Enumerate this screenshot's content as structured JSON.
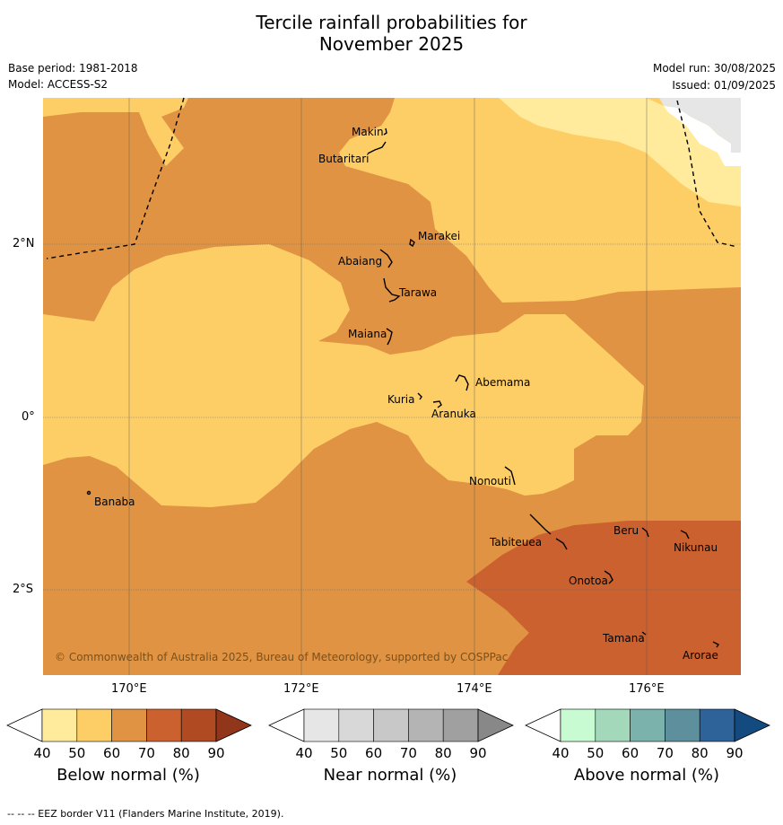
{
  "title_line1": "Tercile rainfall probabilities for",
  "title_line2": "November 2025",
  "base_period": "Base period: 1981-2018",
  "model": "Model: ACCESS-S2",
  "model_run": "Model run: 30/08/2025",
  "issued": "Issued: 01/09/2025",
  "copyright": "© Commonwealth of Australia 2025, Bureau of Meteorology, supported by COSPPac",
  "lat_ticks": [
    "2°N",
    "0°",
    "2°S"
  ],
  "lon_ticks": [
    "170°E",
    "172°E",
    "174°E",
    "176°E"
  ],
  "places": [
    "Makin",
    "Butaritari",
    "Marakei",
    "Abaiang",
    "Tarawa",
    "Maiana",
    "Abemama",
    "Kuria",
    "Aranuka",
    "Nonouti",
    "Banaba",
    "Beru",
    "Nikunau",
    "Tabiteuea",
    "Onotoa",
    "Tamana",
    "Arorae"
  ],
  "colorbars": [
    {
      "title": "Below normal (%)",
      "colors": [
        "#ffffff",
        "#ffeb9b",
        "#fece66",
        "#e09342",
        "#cc6130",
        "#b04a22",
        "#92361b"
      ]
    },
    {
      "title": "Near normal (%)",
      "colors": [
        "#ffffff",
        "#e6e6e6",
        "#d8d8d8",
        "#c8c8c8",
        "#b4b4b4",
        "#a0a0a0",
        "#888888"
      ]
    },
    {
      "title": "Above normal (%)",
      "colors": [
        "#ffffff",
        "#c9fbd2",
        "#a3d8bb",
        "#7bb2ab",
        "#5d909c",
        "#2e6399",
        "#134b80"
      ]
    }
  ],
  "colorbar_ticks": [
    "40",
    "50",
    "60",
    "70",
    "80",
    "90"
  ],
  "footer": "--  --  -- EEZ border V11 (Flanders Marine Institute, 2019)."
}
